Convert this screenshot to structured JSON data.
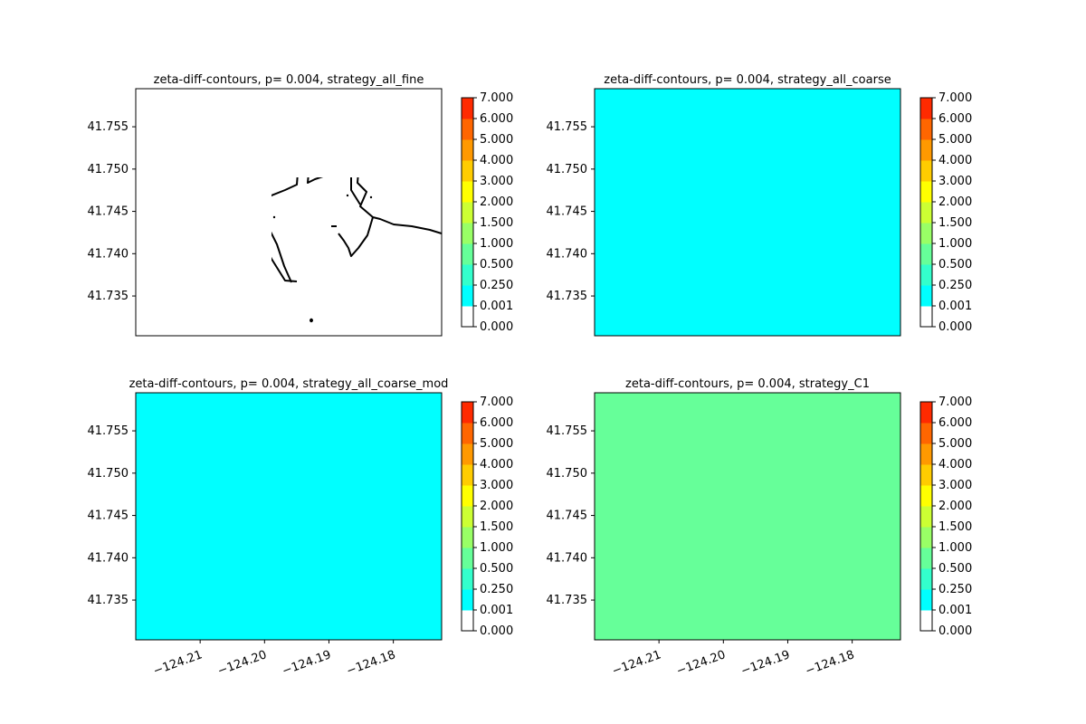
{
  "chart_data": {
    "type": "heatmap",
    "colorbar": {
      "ticks": [
        "0.000",
        "0.001",
        "0.250",
        "0.500",
        "1.000",
        "1.500",
        "2.000",
        "3.000",
        "4.000",
        "5.000",
        "6.000",
        "7.000"
      ],
      "colors": [
        "#ffffff",
        "#00ffff",
        "#33ffcc",
        "#66ff99",
        "#99ff66",
        "#ccff33",
        "#ffff00",
        "#ffcc00",
        "#ff9900",
        "#ff6600",
        "#ff2a00"
      ]
    },
    "axes": {
      "xlim": [
        -124.22,
        -124.1725
      ],
      "ylim": [
        41.7303,
        41.7595
      ],
      "xticks": [
        -124.21,
        -124.2,
        -124.19,
        -124.18
      ],
      "xticklabels": [
        "−124.21",
        "−124.20",
        "−124.19",
        "−124.18"
      ],
      "yticks": [
        41.735,
        41.74,
        41.745,
        41.75,
        41.755
      ],
      "yticklabels": [
        "41.735",
        "41.740",
        "41.745",
        "41.750",
        "41.755"
      ]
    },
    "panels": [
      {
        "title": "zeta-diff-contours, p= 0.004, strategy_all_fine",
        "base_level": "white",
        "show_xticks": false
      },
      {
        "title": "zeta-diff-contours, p= 0.004, strategy_all_coarse",
        "base_level": "cyan",
        "show_xticks": false
      },
      {
        "title": "zeta-diff-contours, p= 0.004, strategy_all_coarse_mod",
        "base_level": "cyan",
        "show_xticks": true
      },
      {
        "title": "zeta-diff-contours, p= 0.004, strategy_C1",
        "base_level": "green",
        "show_xticks": true
      }
    ]
  }
}
